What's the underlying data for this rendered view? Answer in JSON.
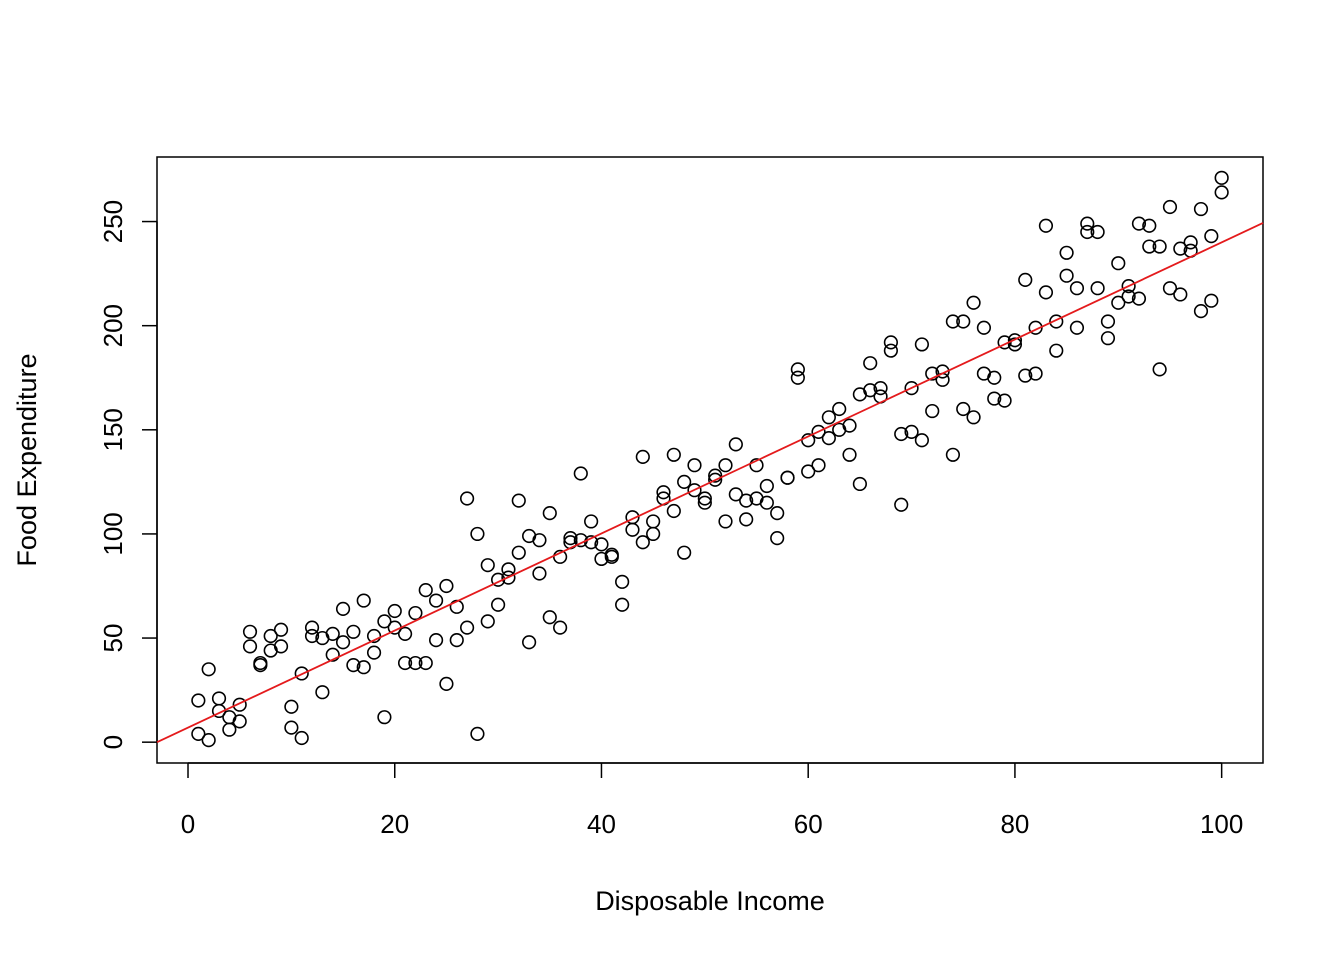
{
  "chart_data": {
    "type": "scatter",
    "title": "",
    "xlabel": "Disposable Income",
    "ylabel": "Food Expenditure",
    "xlim": [
      -3,
      104
    ],
    "ylim": [
      -10,
      281
    ],
    "xticks": [
      0,
      20,
      40,
      60,
      80,
      100
    ],
    "yticks": [
      0,
      50,
      100,
      150,
      200,
      250
    ],
    "xtick_labels": [
      "0",
      "20",
      "40",
      "60",
      "80",
      "100"
    ],
    "ytick_labels": [
      "0",
      "50",
      "100",
      "150",
      "200",
      "250"
    ],
    "grid": false,
    "marker": "open-circle",
    "point_color": "#000000",
    "fit_line_color": "#e41a1c",
    "fit_line": {
      "intercept": 7.0,
      "slope": 2.33
    },
    "points": [
      [
        1,
        20
      ],
      [
        1,
        4
      ],
      [
        2,
        35
      ],
      [
        2,
        1
      ],
      [
        3,
        21
      ],
      [
        3,
        15
      ],
      [
        4,
        12
      ],
      [
        4,
        6
      ],
      [
        5,
        18
      ],
      [
        5,
        10
      ],
      [
        6,
        53
      ],
      [
        6,
        46
      ],
      [
        7,
        38
      ],
      [
        7,
        37
      ],
      [
        8,
        51
      ],
      [
        8,
        44
      ],
      [
        9,
        54
      ],
      [
        9,
        46
      ],
      [
        10,
        17
      ],
      [
        10,
        7
      ],
      [
        11,
        33
      ],
      [
        11,
        2
      ],
      [
        12,
        55
      ],
      [
        12,
        51
      ],
      [
        13,
        50
      ],
      [
        13,
        24
      ],
      [
        14,
        52
      ],
      [
        14,
        42
      ],
      [
        15,
        64
      ],
      [
        15,
        48
      ],
      [
        16,
        53
      ],
      [
        16,
        37
      ],
      [
        17,
        68
      ],
      [
        17,
        36
      ],
      [
        18,
        51
      ],
      [
        18,
        43
      ],
      [
        19,
        58
      ],
      [
        19,
        12
      ],
      [
        20,
        63
      ],
      [
        20,
        55
      ],
      [
        21,
        52
      ],
      [
        21,
        38
      ],
      [
        22,
        62
      ],
      [
        22,
        38
      ],
      [
        23,
        73
      ],
      [
        23,
        38
      ],
      [
        24,
        68
      ],
      [
        24,
        49
      ],
      [
        25,
        75
      ],
      [
        25,
        28
      ],
      [
        26,
        65
      ],
      [
        26,
        49
      ],
      [
        27,
        117
      ],
      [
        27,
        55
      ],
      [
        28,
        100
      ],
      [
        28,
        4
      ],
      [
        29,
        85
      ],
      [
        29,
        58
      ],
      [
        30,
        78
      ],
      [
        30,
        66
      ],
      [
        31,
        83
      ],
      [
        31,
        79
      ],
      [
        32,
        116
      ],
      [
        32,
        91
      ],
      [
        33,
        99
      ],
      [
        33,
        48
      ],
      [
        34,
        97
      ],
      [
        34,
        81
      ],
      [
        35,
        110
      ],
      [
        35,
        60
      ],
      [
        36,
        89
      ],
      [
        36,
        55
      ],
      [
        37,
        98
      ],
      [
        37,
        96
      ],
      [
        38,
        129
      ],
      [
        38,
        97
      ],
      [
        39,
        106
      ],
      [
        39,
        96
      ],
      [
        40,
        95
      ],
      [
        40,
        88
      ],
      [
        41,
        90
      ],
      [
        41,
        89
      ],
      [
        42,
        77
      ],
      [
        42,
        66
      ],
      [
        43,
        108
      ],
      [
        43,
        102
      ],
      [
        44,
        137
      ],
      [
        44,
        96
      ],
      [
        45,
        106
      ],
      [
        45,
        100
      ],
      [
        46,
        120
      ],
      [
        46,
        117
      ],
      [
        47,
        138
      ],
      [
        47,
        111
      ],
      [
        48,
        125
      ],
      [
        48,
        91
      ],
      [
        49,
        133
      ],
      [
        49,
        121
      ],
      [
        50,
        117
      ],
      [
        50,
        115
      ],
      [
        51,
        128
      ],
      [
        51,
        126
      ],
      [
        52,
        133
      ],
      [
        52,
        106
      ],
      [
        53,
        143
      ],
      [
        53,
        119
      ],
      [
        54,
        116
      ],
      [
        54,
        107
      ],
      [
        55,
        133
      ],
      [
        55,
        117
      ],
      [
        56,
        123
      ],
      [
        56,
        115
      ],
      [
        57,
        110
      ],
      [
        57,
        98
      ],
      [
        58,
        127
      ],
      [
        58,
        127
      ],
      [
        59,
        179
      ],
      [
        59,
        175
      ],
      [
        60,
        145
      ],
      [
        60,
        130
      ],
      [
        61,
        149
      ],
      [
        61,
        133
      ],
      [
        62,
        156
      ],
      [
        62,
        146
      ],
      [
        63,
        160
      ],
      [
        63,
        150
      ],
      [
        64,
        152
      ],
      [
        64,
        138
      ],
      [
        65,
        167
      ],
      [
        65,
        124
      ],
      [
        66,
        182
      ],
      [
        66,
        169
      ],
      [
        67,
        170
      ],
      [
        67,
        166
      ],
      [
        68,
        192
      ],
      [
        68,
        188
      ],
      [
        69,
        148
      ],
      [
        69,
        114
      ],
      [
        70,
        170
      ],
      [
        70,
        149
      ],
      [
        71,
        191
      ],
      [
        71,
        145
      ],
      [
        72,
        177
      ],
      [
        72,
        159
      ],
      [
        73,
        178
      ],
      [
        73,
        174
      ],
      [
        74,
        202
      ],
      [
        74,
        138
      ],
      [
        75,
        202
      ],
      [
        75,
        160
      ],
      [
        76,
        211
      ],
      [
        76,
        156
      ],
      [
        77,
        199
      ],
      [
        77,
        177
      ],
      [
        78,
        175
      ],
      [
        78,
        165
      ],
      [
        79,
        192
      ],
      [
        79,
        164
      ],
      [
        80,
        193
      ],
      [
        80,
        191
      ],
      [
        81,
        222
      ],
      [
        81,
        176
      ],
      [
        82,
        199
      ],
      [
        82,
        177
      ],
      [
        83,
        248
      ],
      [
        83,
        216
      ],
      [
        84,
        202
      ],
      [
        84,
        188
      ],
      [
        85,
        235
      ],
      [
        85,
        224
      ],
      [
        86,
        218
      ],
      [
        86,
        199
      ],
      [
        87,
        249
      ],
      [
        87,
        245
      ],
      [
        88,
        245
      ],
      [
        88,
        218
      ],
      [
        89,
        202
      ],
      [
        89,
        194
      ],
      [
        90,
        230
      ],
      [
        90,
        211
      ],
      [
        91,
        219
      ],
      [
        91,
        214
      ],
      [
        92,
        249
      ],
      [
        92,
        213
      ],
      [
        93,
        248
      ],
      [
        93,
        238
      ],
      [
        94,
        238
      ],
      [
        94,
        179
      ],
      [
        95,
        257
      ],
      [
        95,
        218
      ],
      [
        96,
        237
      ],
      [
        96,
        215
      ],
      [
        97,
        240
      ],
      [
        97,
        236
      ],
      [
        98,
        256
      ],
      [
        98,
        207
      ],
      [
        99,
        243
      ],
      [
        99,
        212
      ],
      [
        100,
        271
      ],
      [
        100,
        264
      ]
    ]
  }
}
